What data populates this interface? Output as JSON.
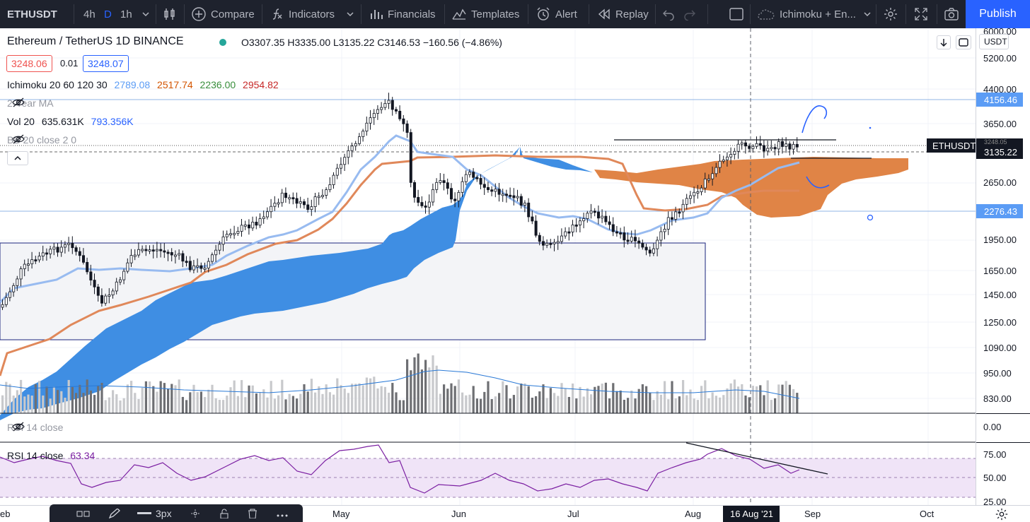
{
  "toolbar": {
    "symbol": "ETHUSDT",
    "intervals": [
      "4h",
      "D",
      "1h"
    ],
    "compare": "Compare",
    "indicators": "Indicators",
    "financials": "Financials",
    "templates": "Templates",
    "alert": "Alert",
    "replay": "Replay",
    "layout_name": "Ichimoku + En...",
    "publish": "Publish"
  },
  "legend": {
    "title": "Ethereum / TetherUS  1D  BINANCE",
    "ohlc": "O3307.35  H3335.00  L3135.22  C3146.53  −160.56 (−4.86%)",
    "sell_price": "3248.06",
    "spread": "0.01",
    "buy_price": "3248.07",
    "ichimoku_label": "Ichimoku 20 60 120 30",
    "ichimoku_v1": "2789.08",
    "ichimoku_v2": "2517.74",
    "ichimoku_v3": "2236.00",
    "ichimoku_v4": "2954.82",
    "ma_label": "2-Year MA",
    "vol_label": "Vol 20",
    "vol_v1": "635.631K",
    "vol_v2": "793.356K",
    "bb_label": "BB 20 close 2 0",
    "rsi1_label": "RSI 14 close",
    "rsi2_label": "RSI 14 close",
    "rsi2_value": "63.34"
  },
  "price_axis": {
    "currency": "USDT",
    "ticks": [
      "6000.00",
      "5200.00",
      "4400.00",
      "3650.00",
      "2650.00",
      "1950.00",
      "1650.00",
      "1450.00",
      "1250.00",
      "1090.00",
      "950.00",
      "830.00"
    ],
    "label_high": "4156.46",
    "label_low": "2276.43",
    "label_symbol": "ETHUSDT",
    "label_price": "3135.22",
    "label_hidden": "3248.05",
    "rsi1_ticks": [
      "0.00"
    ],
    "rsi2_ticks": [
      "75.00",
      "50.00",
      "25.00"
    ]
  },
  "time_axis": {
    "ticks": [
      "eb",
      "May",
      "Jun",
      "Jul",
      "Aug",
      "Sep",
      "Oct"
    ],
    "cursor": "16 Aug '21"
  },
  "drawing_bar": {
    "size": "3px"
  },
  "colors": {
    "toolbar_bg": "#1e222d",
    "accent": "#2962ff",
    "kumo_bull": "#3d8de0",
    "kumo_bear": "#e07b3c",
    "conversion_line": "#98bbf0",
    "base_line": "#e0885a",
    "rsi_line": "#7b1fa2",
    "rsi_band": "#f0e4f7"
  }
}
